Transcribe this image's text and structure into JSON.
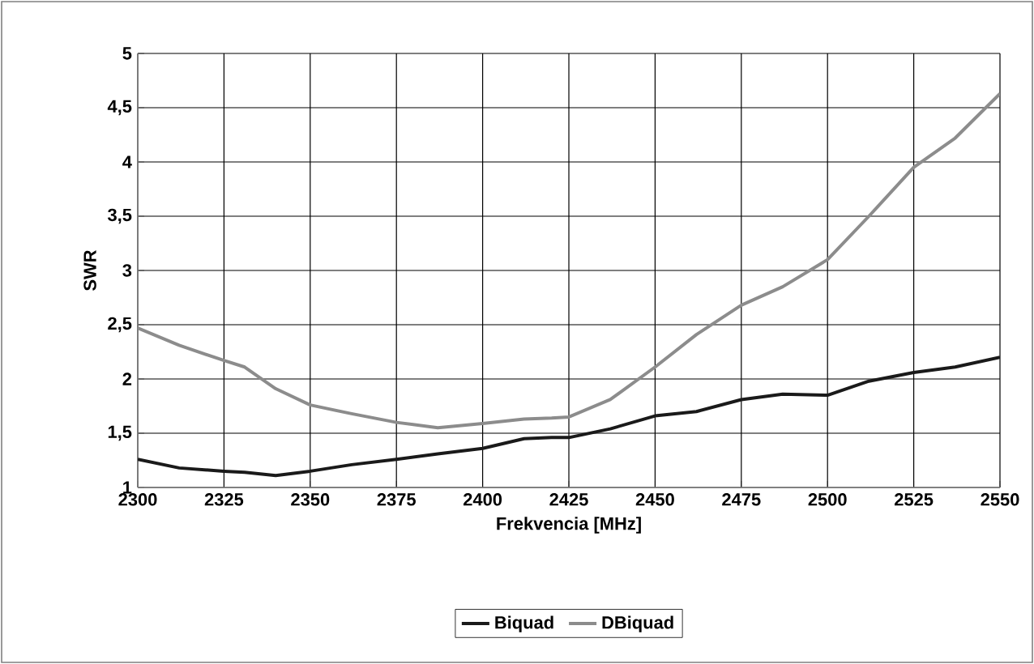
{
  "chart_data": {
    "type": "line",
    "xlabel": "Frekvencia [MHz]",
    "ylabel": "SWR",
    "x": [
      2300,
      2312,
      2325,
      2331,
      2340,
      2350,
      2362,
      2375,
      2387,
      2400,
      2412,
      2420,
      2425,
      2437,
      2450,
      2462,
      2475,
      2487,
      2500,
      2512,
      2525,
      2537,
      2550
    ],
    "series": [
      {
        "name": "Biquad",
        "color": "#1a1a1a",
        "values": [
          1.26,
          1.18,
          1.15,
          1.14,
          1.11,
          1.15,
          1.21,
          1.26,
          1.31,
          1.36,
          1.45,
          1.46,
          1.46,
          1.54,
          1.66,
          1.7,
          1.81,
          1.86,
          1.85,
          1.98,
          2.06,
          2.11,
          2.2
        ]
      },
      {
        "name": "DBiquad",
        "color": "#8c8c8c",
        "values": [
          2.47,
          2.31,
          2.17,
          2.11,
          1.91,
          1.76,
          1.68,
          1.6,
          1.55,
          1.59,
          1.63,
          1.64,
          1.65,
          1.81,
          2.11,
          2.41,
          2.68,
          2.85,
          3.1,
          3.5,
          3.95,
          4.22,
          4.63
        ]
      }
    ],
    "xlim": [
      2300,
      2550
    ],
    "ylim": [
      1,
      5
    ],
    "xticks": [
      2300,
      2325,
      2350,
      2375,
      2400,
      2425,
      2450,
      2475,
      2500,
      2525,
      2550
    ],
    "yticks": [
      1,
      {
        "value": 1.5,
        "label": "1,5"
      },
      2,
      {
        "value": 2.5,
        "label": "2,5"
      },
      3,
      {
        "value": 3.5,
        "label": "3,5"
      },
      4,
      {
        "value": 4.5,
        "label": "4,5"
      },
      5
    ],
    "grid": true,
    "legend": "bottom",
    "marker": "none",
    "line_style": "solid"
  }
}
